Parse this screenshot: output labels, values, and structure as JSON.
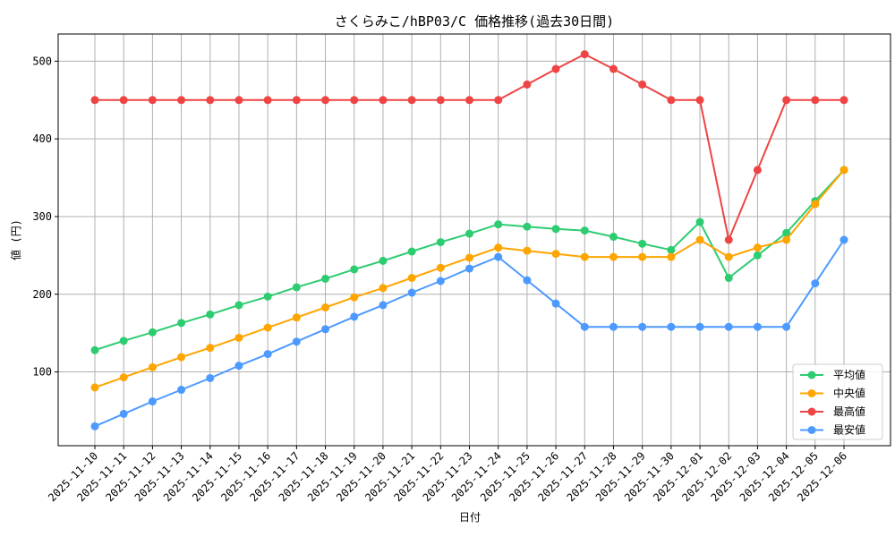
{
  "chart_data": {
    "type": "line",
    "title": "さくらみこ/hBP03/C 価格推移(過去30日間)",
    "xlabel": "日付",
    "ylabel": "値 (円)",
    "categories": [
      "2025-11-10",
      "2025-11-11",
      "2025-11-12",
      "2025-11-13",
      "2025-11-14",
      "2025-11-15",
      "2025-11-16",
      "2025-11-17",
      "2025-11-18",
      "2025-11-19",
      "2025-11-20",
      "2025-11-21",
      "2025-11-22",
      "2025-11-23",
      "2025-11-24",
      "2025-11-25",
      "2025-11-26",
      "2025-11-27",
      "2025-11-28",
      "2025-11-29",
      "2025-11-30",
      "2025-12-01",
      "2025-12-02",
      "2025-12-03",
      "2025-12-04",
      "2025-12-05",
      "2025-12-06"
    ],
    "ylim": [
      5,
      535
    ],
    "yticks": [
      100,
      200,
      300,
      400,
      500
    ],
    "grid": true,
    "legend_position": "lower-right",
    "series": [
      {
        "name": "平均値",
        "color": "#2ecc71",
        "values": [
          128,
          140,
          151,
          163,
          174,
          186,
          197,
          209,
          220,
          232,
          243,
          255,
          267,
          278,
          290,
          287,
          284,
          282,
          274,
          265,
          257,
          293,
          221,
          250,
          279,
          320,
          360
        ]
      },
      {
        "name": "中央値",
        "color": "#ffa500",
        "values": [
          80,
          93,
          106,
          119,
          131,
          144,
          157,
          170,
          183,
          196,
          208,
          221,
          234,
          247,
          260,
          256,
          252,
          248,
          248,
          248,
          248,
          270,
          248,
          260,
          270,
          316,
          360
        ]
      },
      {
        "name": "最高値",
        "color": "#ef4444",
        "values": [
          450,
          450,
          450,
          450,
          450,
          450,
          450,
          450,
          450,
          450,
          450,
          450,
          450,
          450,
          450,
          470,
          490,
          509,
          490,
          470,
          450,
          450,
          270,
          360,
          450,
          450,
          450
        ]
      },
      {
        "name": "最安値",
        "color": "#4c9aff",
        "values": [
          30,
          46,
          62,
          77,
          92,
          108,
          123,
          139,
          155,
          171,
          186,
          202,
          217,
          233,
          248,
          218,
          188,
          158,
          158,
          158,
          158,
          158,
          158,
          158,
          158,
          214,
          270
        ]
      }
    ]
  }
}
